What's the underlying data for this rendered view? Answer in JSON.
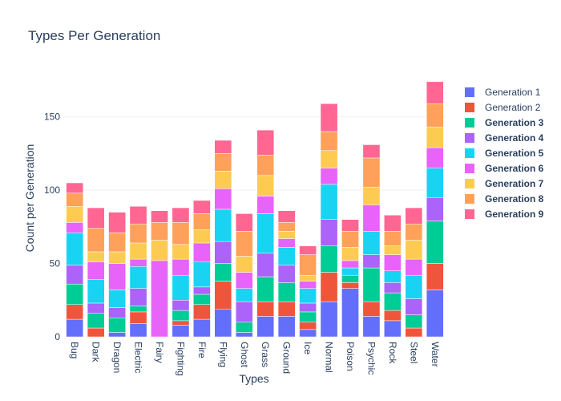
{
  "chart_data": {
    "type": "bar",
    "stacked": true,
    "title": "Types Per Generation",
    "xlabel": "Types",
    "ylabel": "Count per Generation",
    "ylim": [
      0,
      175
    ],
    "yticks": [
      0,
      50,
      100,
      150
    ],
    "grid": true,
    "legend_position": "right",
    "categories": [
      "Bug",
      "Dark",
      "Dragon",
      "Electric",
      "Fairy",
      "Fighting",
      "Fire",
      "Flying",
      "Ghost",
      "Grass",
      "Ground",
      "Ice",
      "Normal",
      "Poison",
      "Psychic",
      "Rock",
      "Steel",
      "Water"
    ],
    "series": [
      {
        "name": "Generation 1",
        "color": "#636efa",
        "bold": false,
        "values": [
          12,
          0,
          3,
          9,
          0,
          8,
          12,
          19,
          3,
          14,
          14,
          5,
          24,
          33,
          14,
          11,
          0,
          32
        ]
      },
      {
        "name": "Generation 2",
        "color": "#ef553b",
        "bold": false,
        "values": [
          10,
          6,
          0,
          8,
          0,
          3,
          10,
          19,
          0,
          10,
          10,
          5,
          20,
          4,
          10,
          7,
          6,
          18
        ]
      },
      {
        "name": "Generation 3",
        "color": "#00cc96",
        "bold": true,
        "values": [
          14,
          10,
          10,
          4,
          0,
          7,
          7,
          12,
          7,
          17,
          13,
          7,
          18,
          5,
          23,
          12,
          9,
          29
        ]
      },
      {
        "name": "Generation 4",
        "color": "#ab63fa",
        "bold": true,
        "values": [
          13,
          7,
          7,
          12,
          0,
          7,
          5,
          15,
          14,
          16,
          12,
          6,
          18,
          0,
          9,
          7,
          11,
          16
        ]
      },
      {
        "name": "Generation 5",
        "color": "#19d3f3",
        "bold": true,
        "values": [
          22,
          16,
          12,
          15,
          0,
          17,
          17,
          22,
          9,
          27,
          12,
          10,
          24,
          5,
          16,
          8,
          16,
          20
        ]
      },
      {
        "name": "Generation 6",
        "color": "#e763fa",
        "bold": true,
        "values": [
          7,
          12,
          18,
          5,
          52,
          11,
          13,
          14,
          11,
          12,
          6,
          5,
          11,
          5,
          18,
          11,
          11,
          14
        ]
      },
      {
        "name": "Generation 7",
        "color": "#fecb52",
        "bold": true,
        "values": [
          11,
          7,
          8,
          11,
          14,
          10,
          9,
          12,
          11,
          14,
          5,
          4,
          12,
          9,
          12,
          6,
          13,
          14
        ]
      },
      {
        "name": "Generation 8",
        "color": "#ffa15a",
        "bold": true,
        "values": [
          9,
          16,
          13,
          13,
          12,
          15,
          11,
          12,
          17,
          14,
          6,
          14,
          13,
          11,
          20,
          10,
          11,
          16
        ]
      },
      {
        "name": "Generation 9",
        "color": "#ff6692",
        "bold": true,
        "values": [
          7,
          14,
          14,
          12,
          8,
          10,
          9,
          9,
          12,
          17,
          8,
          6,
          19,
          8,
          9,
          11,
          11,
          15
        ]
      }
    ]
  }
}
